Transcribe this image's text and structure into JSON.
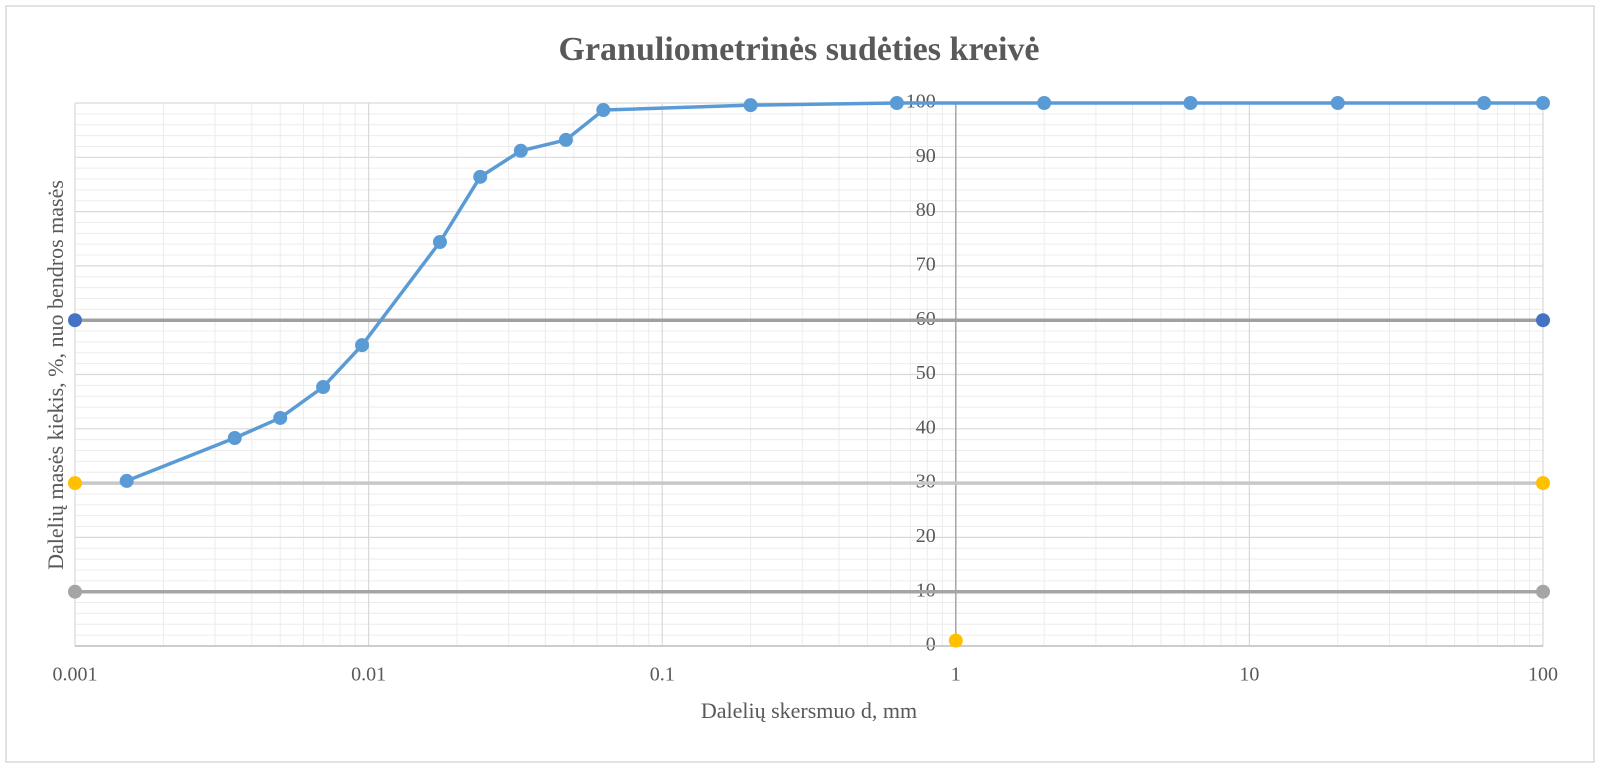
{
  "chart_data": {
    "type": "scatter",
    "title": "Granuliometrinės sudėties kreivė",
    "x_label": "Dalelių skersmuo d, mm",
    "y_label": "Dalelių masės kiekis, %, nuo bendros masės",
    "x_log": true,
    "xlim": [
      0.001,
      100
    ],
    "xticks": [
      0.001,
      0.01,
      0.1,
      1,
      10,
      100
    ],
    "ylim": [
      0,
      100
    ],
    "yticks": [
      0,
      10,
      20,
      30,
      40,
      50,
      60,
      70,
      80,
      90,
      100
    ],
    "y_axis_crosses_x": 1,
    "grid": true,
    "minor_grid": true,
    "series": [
      {
        "color": "#5b9bd5",
        "line_color": "#5b9bd5",
        "line": true,
        "x": [
          0.0015,
          0.0035,
          0.005,
          0.007,
          0.0095,
          0.0175,
          0.024,
          0.033,
          0.047,
          0.063,
          0.2,
          0.63,
          2,
          6.3,
          20,
          63,
          100
        ],
        "values": [
          30.4,
          38.3,
          42.0,
          47.7,
          55.4,
          74.4,
          86.4,
          91.2,
          93.2,
          98.7,
          99.6,
          100,
          100,
          100,
          100,
          100,
          100
        ]
      },
      {
        "color": "#4472c4",
        "line_color": "#a0a0a0",
        "line": true,
        "x": [
          0.001,
          100
        ],
        "values": [
          60,
          60
        ]
      },
      {
        "color": "#ffc000",
        "line_color": "#c8c8c8",
        "line": true,
        "x": [
          0.001,
          100
        ],
        "values": [
          30,
          30
        ]
      },
      {
        "color": "#a5a5a5",
        "line_color": "#a5a5a5",
        "line": true,
        "x": [
          0.001,
          100
        ],
        "values": [
          10,
          10
        ]
      },
      {
        "color": "#ffc000",
        "line_color": "#ffc000",
        "line": false,
        "x": [
          1
        ],
        "values": [
          1
        ]
      }
    ]
  }
}
